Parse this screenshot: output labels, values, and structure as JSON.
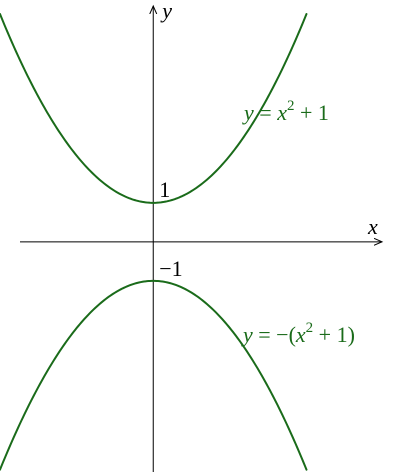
{
  "chart_data": {
    "type": "line",
    "xlabel": "x",
    "ylabel": "y",
    "xlim": [
      -2.2,
      3.6
    ],
    "ylim": [
      -5.9,
      6.2
    ],
    "grid": false,
    "colors": {
      "curve": "#1a6b1a",
      "axes": "#000000"
    },
    "tick_labels": [
      {
        "y": 1,
        "text": "1"
      },
      {
        "y": -1,
        "text": "−1"
      }
    ],
    "series": [
      {
        "expression": "y = x^2 + 1",
        "label": {
          "lhs": "y",
          "eq": " = ",
          "base": "x",
          "exp": "2",
          "rest": " + 1"
        },
        "x": [
          -2.2,
          -2.0,
          -1.75,
          -1.5,
          -1.25,
          -1.0,
          -0.75,
          -0.5,
          -0.25,
          0.0,
          0.25,
          0.5,
          0.75,
          1.0,
          1.25,
          1.5,
          1.75,
          2.0,
          2.2
        ],
        "y": [
          5.84,
          5.0,
          4.0625,
          3.25,
          2.5625,
          2.0,
          1.5625,
          1.25,
          1.0625,
          1.0,
          1.0625,
          1.25,
          1.5625,
          2.0,
          2.5625,
          3.25,
          4.0625,
          5.0,
          5.84
        ]
      },
      {
        "expression": "y = −(x^2 + 1)",
        "label": {
          "lhs": "y",
          "eq": " = −(",
          "base": "x",
          "exp": "2",
          "rest": " + 1)"
        },
        "x": [
          -2.2,
          -2.0,
          -1.75,
          -1.5,
          -1.25,
          -1.0,
          -0.75,
          -0.5,
          -0.25,
          0.0,
          0.25,
          0.5,
          0.75,
          1.0,
          1.25,
          1.5,
          1.75,
          2.0,
          2.2
        ],
        "y": [
          -5.84,
          -5.0,
          -4.0625,
          -3.25,
          -2.5625,
          -2.0,
          -1.5625,
          -1.25,
          -1.0625,
          -1.0,
          -1.0625,
          -1.25,
          -1.5625,
          -2.0,
          -2.5625,
          -3.25,
          -4.0625,
          -5.0,
          -5.84
        ]
      }
    ]
  }
}
